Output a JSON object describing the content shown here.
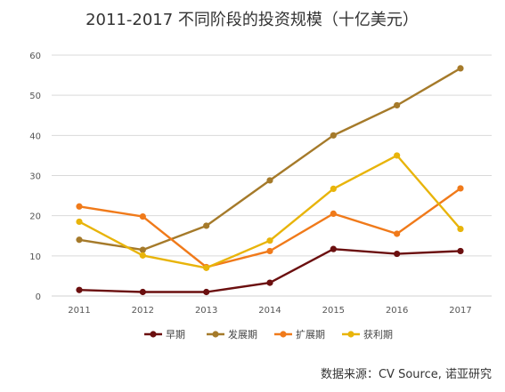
{
  "chart_data": {
    "type": "line",
    "title": "2011-2017 不同阶段的投资规模（十亿美元）",
    "x": [
      "2011",
      "2012",
      "2013",
      "2014",
      "2015",
      "2016",
      "2017"
    ],
    "ylim": [
      0,
      60
    ],
    "yticks": [
      0,
      10,
      20,
      30,
      40,
      50,
      60
    ],
    "grid": true,
    "legend_position": "bottom",
    "series": [
      {
        "name": "早期",
        "color": "#6b0f0f",
        "values": [
          1.5,
          1.0,
          1.0,
          3.3,
          11.7,
          10.5,
          11.2
        ]
      },
      {
        "name": "发展期",
        "color": "#a57a2a",
        "values": [
          14.0,
          11.5,
          17.5,
          28.8,
          40.0,
          47.5,
          56.7
        ]
      },
      {
        "name": "扩展期",
        "color": "#f07a1a",
        "values": [
          22.3,
          19.8,
          7.2,
          11.2,
          20.5,
          15.5,
          26.8
        ]
      },
      {
        "name": "获利期",
        "color": "#e8b40a",
        "values": [
          18.5,
          10.1,
          7.0,
          13.8,
          26.7,
          35.0,
          16.7
        ]
      }
    ],
    "source": "数据来源：CV Source, 诺亚研究"
  }
}
